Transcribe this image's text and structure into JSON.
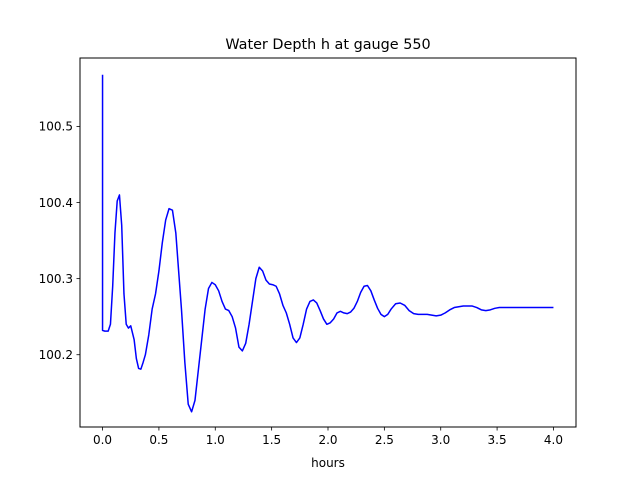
{
  "chart_data": {
    "type": "line",
    "title": "Water Depth h at gauge 550",
    "xlabel": "hours",
    "ylabel": "",
    "xlim": [
      -0.2,
      4.2
    ],
    "ylim": [
      100.105,
      100.59
    ],
    "xticks": [
      0.0,
      0.5,
      1.0,
      1.5,
      2.0,
      2.5,
      3.0,
      3.5,
      4.0
    ],
    "xtick_labels": [
      "0.0",
      "0.5",
      "1.0",
      "1.5",
      "2.0",
      "2.5",
      "3.0",
      "3.5",
      "4.0"
    ],
    "yticks": [
      100.2,
      100.3,
      100.4,
      100.5
    ],
    "ytick_labels": [
      "100.2",
      "100.3",
      "100.4",
      "100.5"
    ],
    "grid": false,
    "legend": "none",
    "series": [
      {
        "color": "#0000ff",
        "x": [
          0.0,
          0.0,
          0.0,
          0.02,
          0.05,
          0.07,
          0.09,
          0.11,
          0.13,
          0.15,
          0.17,
          0.19,
          0.21,
          0.23,
          0.25,
          0.28,
          0.3,
          0.32,
          0.34,
          0.36,
          0.38,
          0.41,
          0.44,
          0.47,
          0.5,
          0.53,
          0.56,
          0.59,
          0.62,
          0.65,
          0.67,
          0.7,
          0.73,
          0.76,
          0.79,
          0.82,
          0.85,
          0.88,
          0.91,
          0.94,
          0.97,
          1.0,
          1.03,
          1.06,
          1.09,
          1.12,
          1.15,
          1.18,
          1.21,
          1.24,
          1.27,
          1.3,
          1.33,
          1.36,
          1.39,
          1.42,
          1.45,
          1.48,
          1.51,
          1.54,
          1.57,
          1.6,
          1.63,
          1.66,
          1.69,
          1.72,
          1.75,
          1.78,
          1.81,
          1.84,
          1.87,
          1.9,
          1.93,
          1.96,
          1.99,
          2.02,
          2.05,
          2.08,
          2.11,
          2.14,
          2.17,
          2.2,
          2.23,
          2.26,
          2.29,
          2.32,
          2.35,
          2.38,
          2.41,
          2.44,
          2.47,
          2.5,
          2.53,
          2.56,
          2.6,
          2.64,
          2.68,
          2.72,
          2.76,
          2.8,
          2.84,
          2.88,
          2.92,
          2.96,
          3.0,
          3.04,
          3.08,
          3.12,
          3.16,
          3.2,
          3.24,
          3.28,
          3.32,
          3.36,
          3.4,
          3.44,
          3.48,
          3.52,
          3.56,
          3.6,
          3.64,
          3.68,
          3.72,
          3.76,
          3.8,
          3.84,
          3.88,
          3.92,
          3.96,
          4.0
        ],
        "y": [
          100.568,
          100.232,
          100.232,
          100.231,
          100.231,
          100.24,
          100.29,
          100.36,
          100.402,
          100.41,
          100.37,
          100.28,
          100.24,
          100.235,
          100.238,
          100.22,
          100.195,
          100.182,
          100.181,
          100.19,
          100.2,
          100.226,
          100.26,
          100.28,
          100.31,
          100.347,
          100.377,
          100.392,
          100.39,
          100.36,
          100.32,
          100.26,
          100.19,
          100.135,
          100.125,
          100.14,
          100.18,
          100.22,
          100.26,
          100.287,
          100.295,
          100.292,
          100.284,
          100.27,
          100.26,
          100.258,
          100.25,
          100.235,
          100.21,
          100.205,
          100.215,
          100.24,
          100.27,
          100.3,
          100.315,
          100.31,
          100.298,
          100.293,
          100.292,
          100.29,
          100.28,
          100.265,
          100.255,
          100.24,
          100.222,
          100.216,
          100.222,
          100.24,
          100.26,
          100.27,
          100.272,
          100.268,
          100.258,
          100.247,
          100.24,
          100.242,
          100.247,
          100.255,
          100.257,
          100.255,
          100.254,
          100.256,
          100.261,
          100.27,
          100.282,
          100.29,
          100.291,
          100.284,
          100.272,
          100.261,
          100.253,
          100.25,
          100.253,
          100.26,
          100.267,
          100.268,
          100.265,
          100.258,
          100.254,
          100.253,
          100.253,
          100.253,
          100.252,
          100.251,
          100.252,
          100.255,
          100.259,
          100.262,
          100.263,
          100.264,
          100.264,
          100.264,
          100.262,
          100.259,
          100.258,
          100.259,
          100.261,
          100.262,
          100.262,
          100.262,
          100.262,
          100.262,
          100.262,
          100.262,
          100.262,
          100.262,
          100.262,
          100.262,
          100.262,
          100.262
        ]
      }
    ]
  }
}
